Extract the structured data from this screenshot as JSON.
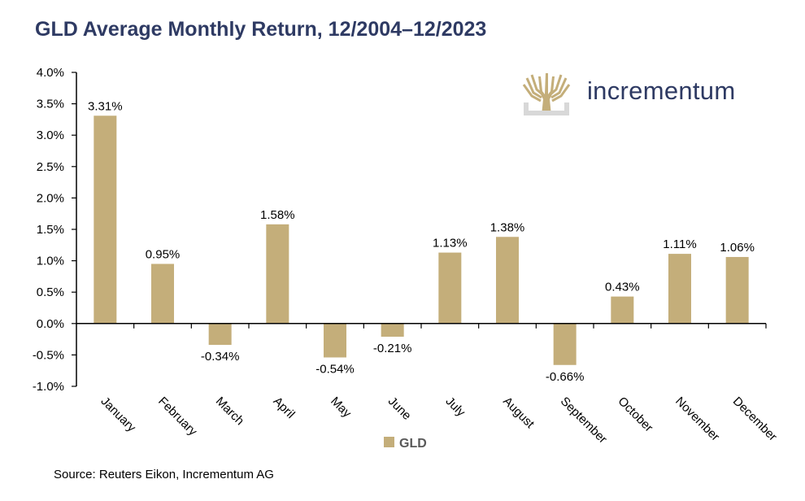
{
  "chart_data": {
    "type": "bar",
    "title": "GLD Average Monthly Return, 12/2004–12/2023",
    "xlabel": "",
    "ylabel": "",
    "categories": [
      "January",
      "February",
      "March",
      "April",
      "May",
      "June",
      "July",
      "August",
      "September",
      "October",
      "November",
      "December"
    ],
    "series": [
      {
        "name": "GLD",
        "values": [
          3.31,
          0.95,
          -0.34,
          1.58,
          -0.54,
          -0.21,
          1.13,
          1.38,
          -0.66,
          0.43,
          1.11,
          1.06
        ]
      }
    ],
    "data_labels": [
      "3.31%",
      "0.95%",
      "-0.34%",
      "1.58%",
      "-0.54%",
      "-0.21%",
      "1.13%",
      "1.38%",
      "-0.66%",
      "0.43%",
      "1.11%",
      "1.06%"
    ],
    "ylim": [
      -1.0,
      4.0
    ],
    "yticks": [
      4.0,
      3.5,
      3.0,
      2.5,
      2.0,
      1.5,
      1.0,
      0.5,
      0.0,
      -0.5,
      -1.0
    ],
    "ytick_labels": [
      "4.0%",
      "3.5%",
      "3.0%",
      "2.5%",
      "2.0%",
      "1.5%",
      "1.0%",
      "0.5%",
      "0.0%",
      "-0.5%",
      "-1.0%"
    ],
    "legend": {
      "position": "bottom",
      "label": "GLD"
    },
    "grid": false,
    "bar_color": "#c4ae7a",
    "source": "Source: Reuters Eikon, Incrementum AG"
  },
  "logo": {
    "text": "incrementum",
    "color": "#2e3a63",
    "mark_color": "#c4ae7a"
  }
}
